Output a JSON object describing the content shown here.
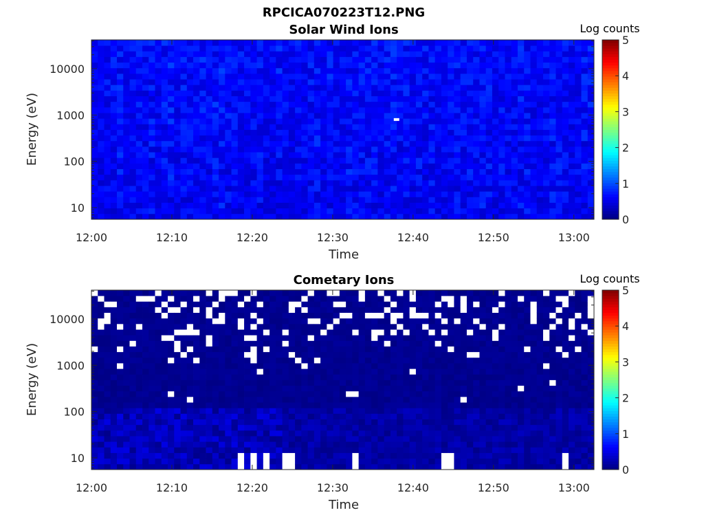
{
  "figure_title": "RPCICA070223T12.PNG",
  "chart_data": [
    {
      "type": "heatmap",
      "title": "Solar Wind Ions",
      "xlabel": "Time",
      "ylabel": "Energy (eV)",
      "x_ticks": [
        "12:00",
        "12:10",
        "12:20",
        "12:30",
        "12:40",
        "12:50",
        "13:00"
      ],
      "x_tick_minutes": [
        0,
        10,
        20,
        30,
        40,
        50,
        60
      ],
      "xlim_minutes": [
        0,
        62.5
      ],
      "y_scale": "log",
      "y_ticks": [
        "10",
        "100",
        "1000",
        "10000"
      ],
      "y_tick_values": [
        10,
        100,
        1000,
        10000
      ],
      "ylim": [
        5.6,
        42000
      ],
      "colorbar": {
        "label": "Log counts",
        "range": [
          0,
          5
        ],
        "ticks": [
          "0",
          "1",
          "2",
          "3",
          "4",
          "5"
        ],
        "colormap": "jet"
      },
      "value_description": "Log counts mostly between 0 and 1 across all energies and times; white = no data"
    },
    {
      "type": "heatmap",
      "title": "Cometary Ions",
      "xlabel": "Time",
      "ylabel": "Energy (eV)",
      "x_ticks": [
        "12:00",
        "12:10",
        "12:20",
        "12:30",
        "12:40",
        "12:50",
        "13:00"
      ],
      "x_tick_minutes": [
        0,
        10,
        20,
        30,
        40,
        50,
        60
      ],
      "xlim_minutes": [
        0,
        62.5
      ],
      "y_scale": "log",
      "y_ticks": [
        "10",
        "100",
        "1000",
        "10000"
      ],
      "y_tick_values": [
        10,
        100,
        1000,
        10000
      ],
      "ylim": [
        5.6,
        42000
      ],
      "colorbar": {
        "label": "Log counts",
        "range": [
          0,
          5
        ],
        "ticks": [
          "0",
          "1",
          "2",
          "3",
          "4",
          "5"
        ],
        "colormap": "jet"
      },
      "value_description": "Log counts near 0 (dark blue) with many empty (white) bins at high energy; slightly higher (~0.5) below 100 eV"
    }
  ]
}
